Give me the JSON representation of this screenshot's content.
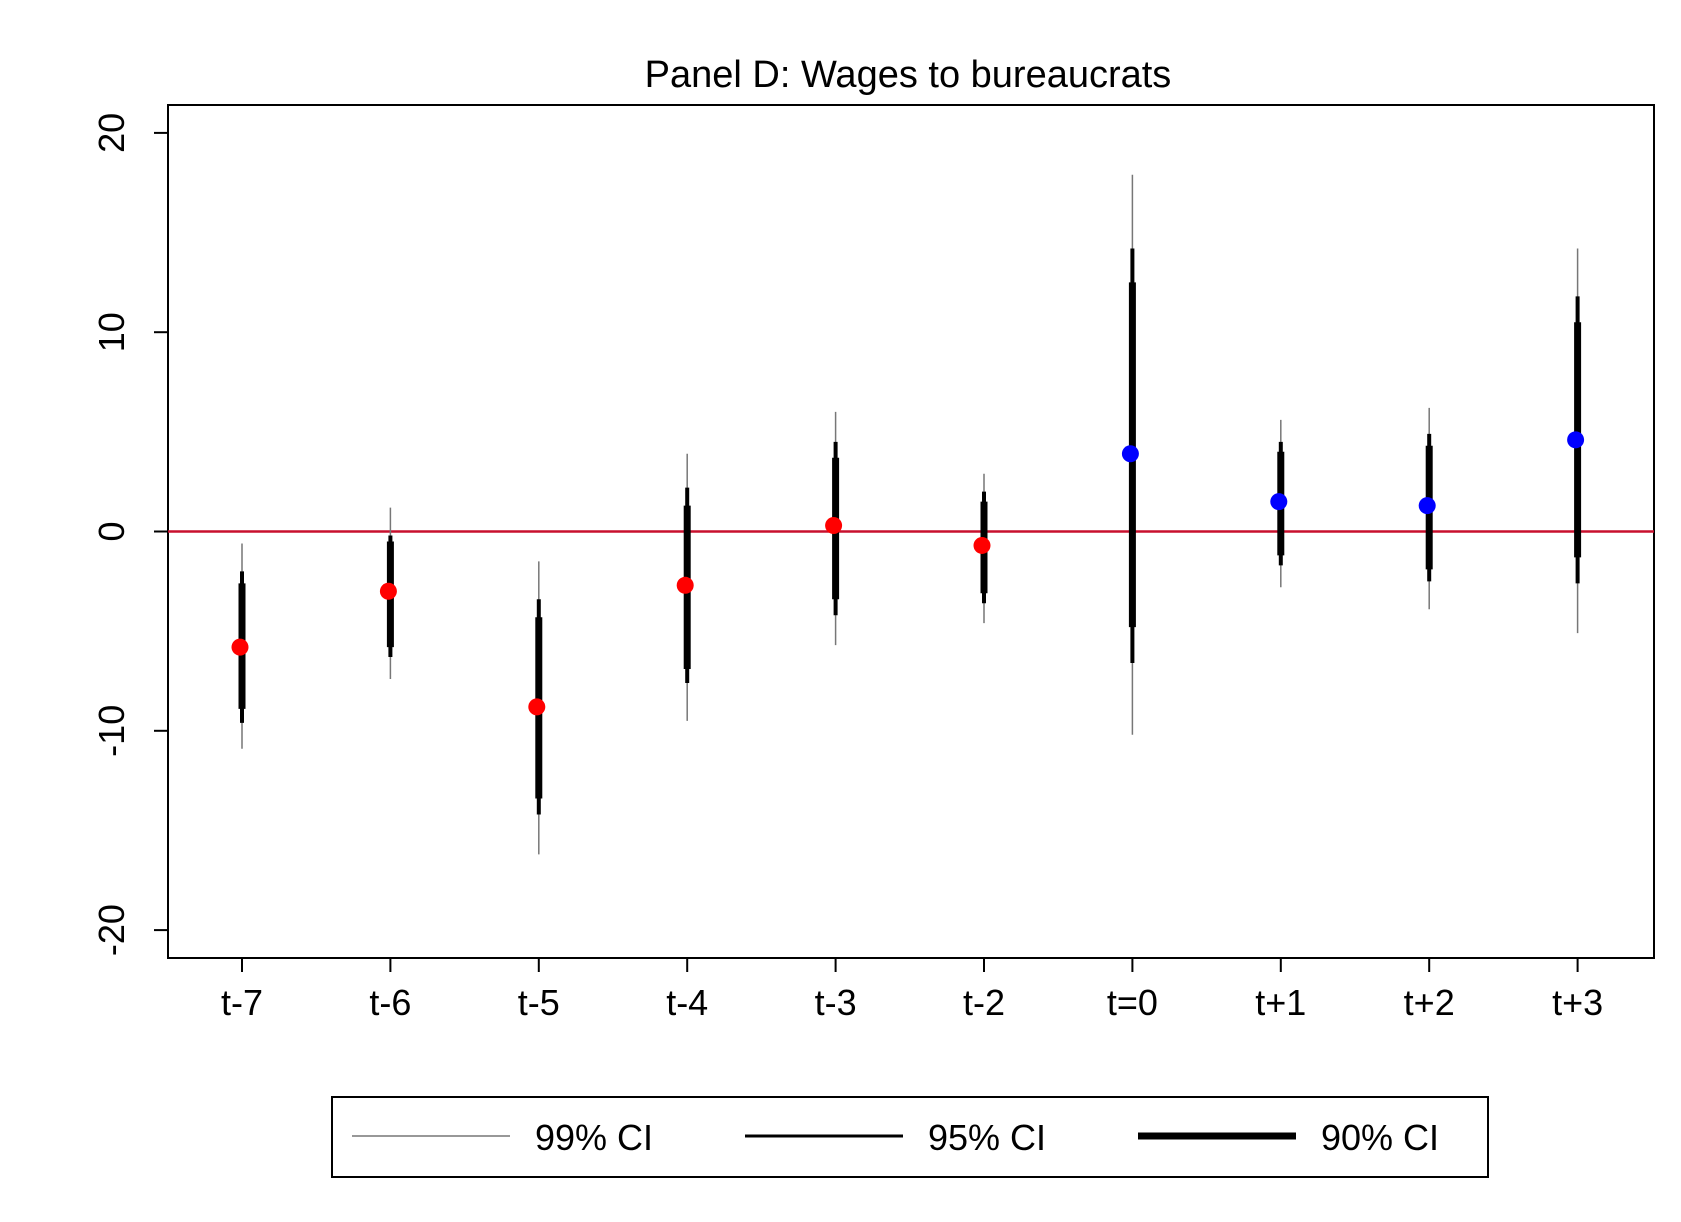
{
  "chart_data": {
    "type": "scatter",
    "title": "Panel D: Wages to bureaucrats",
    "xlabel": "",
    "ylabel": "",
    "categories": [
      "t-7",
      "t-6",
      "t-5",
      "t-4",
      "t-3",
      "t-2",
      "t=0",
      "t+1",
      "t+2",
      "t+3"
    ],
    "ylim": [
      -21.4,
      21.4
    ],
    "yticks": [
      -20,
      -10,
      0,
      10,
      20
    ],
    "reference_line": {
      "y": 0,
      "color": "#c8102e"
    },
    "grid": false,
    "legend_position": "bottom",
    "legend": [
      "99% CI",
      "95% CI",
      "90% CI"
    ],
    "colors": {
      "pre": "#ff0000",
      "post": "#0000ff",
      "ci": "#000000",
      "ci99": "#777777"
    },
    "points": [
      {
        "x": "t-7",
        "y": -5.8,
        "ci99": [
          -10.9,
          -0.6
        ],
        "ci95": [
          -9.6,
          -2.0
        ],
        "ci90": [
          -8.9,
          -2.6
        ],
        "group": "pre"
      },
      {
        "x": "t-6",
        "y": -3.0,
        "ci99": [
          -7.4,
          1.2
        ],
        "ci95": [
          -6.3,
          -0.2
        ],
        "ci90": [
          -5.8,
          -0.5
        ],
        "group": "pre"
      },
      {
        "x": "t-5",
        "y": -8.8,
        "ci99": [
          -16.2,
          -1.5
        ],
        "ci95": [
          -14.2,
          -3.4
        ],
        "ci90": [
          -13.4,
          -4.3
        ],
        "group": "pre"
      },
      {
        "x": "t-4",
        "y": -2.7,
        "ci99": [
          -9.5,
          3.9
        ],
        "ci95": [
          -7.6,
          2.2
        ],
        "ci90": [
          -6.9,
          1.3
        ],
        "group": "pre"
      },
      {
        "x": "t-3",
        "y": 0.3,
        "ci99": [
          -5.7,
          6.0
        ],
        "ci95": [
          -4.2,
          4.5
        ],
        "ci90": [
          -3.4,
          3.7
        ],
        "group": "pre"
      },
      {
        "x": "t-2",
        "y": -0.7,
        "ci99": [
          -4.6,
          2.9
        ],
        "ci95": [
          -3.6,
          2.0
        ],
        "ci90": [
          -3.1,
          1.5
        ],
        "group": "pre"
      },
      {
        "x": "t=0",
        "y": 3.9,
        "ci99": [
          -10.2,
          17.9
        ],
        "ci95": [
          -6.6,
          14.2
        ],
        "ci90": [
          -4.8,
          12.5
        ],
        "group": "post"
      },
      {
        "x": "t+1",
        "y": 1.5,
        "ci99": [
          -2.8,
          5.6
        ],
        "ci95": [
          -1.7,
          4.5
        ],
        "ci90": [
          -1.2,
          4.0
        ],
        "group": "post"
      },
      {
        "x": "t+2",
        "y": 1.3,
        "ci99": [
          -3.9,
          6.2
        ],
        "ci95": [
          -2.5,
          4.9
        ],
        "ci90": [
          -1.9,
          4.3
        ],
        "group": "post"
      },
      {
        "x": "t+3",
        "y": 4.6,
        "ci99": [
          -5.1,
          14.2
        ],
        "ci95": [
          -2.6,
          11.8
        ],
        "ci90": [
          -1.3,
          10.5
        ],
        "group": "post"
      }
    ]
  }
}
